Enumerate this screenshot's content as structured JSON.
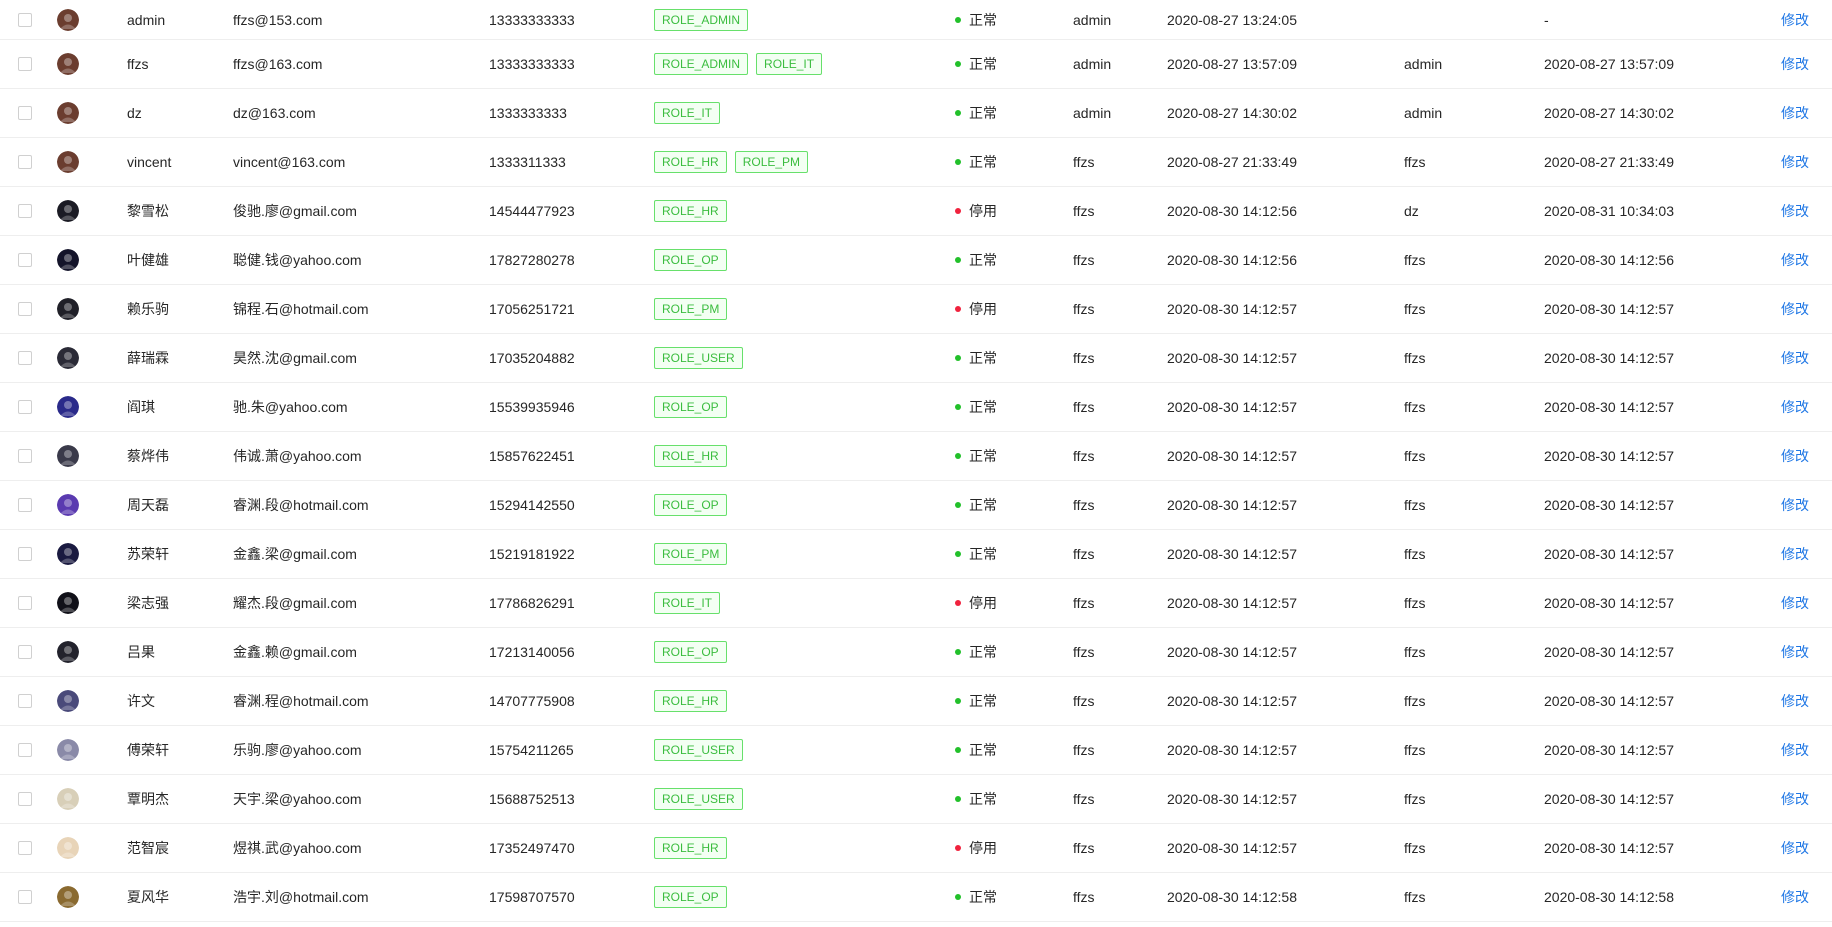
{
  "colors": {
    "status_normal": "#22c02a",
    "status_disabled": "#f0223d",
    "tag_border": "#67e06b",
    "tag_text": "#3bbd3f",
    "link": "#1f77e5"
  },
  "action_label": "修改",
  "rows": [
    {
      "username": "admin",
      "email": "ffzs@153.com",
      "phone": "13333333333",
      "roles": [
        "ROLE_ADMIN"
      ],
      "status": "正常",
      "status_key": "normal",
      "creator": "admin",
      "create_time": "2020-08-27 13:24:05",
      "updater": "",
      "update_time": "-",
      "avatar_icon": "user-avatar-icon",
      "avatar_color": "#6b3d2f"
    },
    {
      "username": "ffzs",
      "email": "ffzs@163.com",
      "phone": "13333333333",
      "roles": [
        "ROLE_ADMIN",
        "ROLE_IT"
      ],
      "status": "正常",
      "status_key": "normal",
      "creator": "admin",
      "create_time": "2020-08-27 13:57:09",
      "updater": "admin",
      "update_time": "2020-08-27 13:57:09",
      "avatar_icon": "user-avatar-icon",
      "avatar_color": "#6b3d2f"
    },
    {
      "username": "dz",
      "email": "dz@163.com",
      "phone": "1333333333",
      "roles": [
        "ROLE_IT"
      ],
      "status": "正常",
      "status_key": "normal",
      "creator": "admin",
      "create_time": "2020-08-27 14:30:02",
      "updater": "admin",
      "update_time": "2020-08-27 14:30:02",
      "avatar_icon": "user-avatar-icon",
      "avatar_color": "#6b3d2f"
    },
    {
      "username": "vincent",
      "email": "vincent@163.com",
      "phone": "1333311333",
      "roles": [
        "ROLE_HR",
        "ROLE_PM"
      ],
      "status": "正常",
      "status_key": "normal",
      "creator": "ffzs",
      "create_time": "2020-08-27 21:33:49",
      "updater": "ffzs",
      "update_time": "2020-08-27 21:33:49",
      "avatar_icon": "user-avatar-icon",
      "avatar_color": "#6b3d2f"
    },
    {
      "username": "黎雪松",
      "email": "俊驰.廖@gmail.com",
      "phone": "14544477923",
      "roles": [
        "ROLE_HR"
      ],
      "status": "停用",
      "status_key": "disabled",
      "creator": "ffzs",
      "create_time": "2020-08-30 14:12:56",
      "updater": "dz",
      "update_time": "2020-08-31 10:34:03",
      "avatar_icon": "user-avatar-icon",
      "avatar_color": "#1b1b24"
    },
    {
      "username": "叶健雄",
      "email": "聪健.钱@yahoo.com",
      "phone": "17827280278",
      "roles": [
        "ROLE_OP"
      ],
      "status": "正常",
      "status_key": "normal",
      "creator": "ffzs",
      "create_time": "2020-08-30 14:12:56",
      "updater": "ffzs",
      "update_time": "2020-08-30 14:12:56",
      "avatar_icon": "user-avatar-icon",
      "avatar_color": "#14142a"
    },
    {
      "username": "赖乐驹",
      "email": "锦程.石@hotmail.com",
      "phone": "17056251721",
      "roles": [
        "ROLE_PM"
      ],
      "status": "停用",
      "status_key": "disabled",
      "creator": "ffzs",
      "create_time": "2020-08-30 14:12:57",
      "updater": "ffzs",
      "update_time": "2020-08-30 14:12:57",
      "avatar_icon": "user-avatar-icon",
      "avatar_color": "#202028"
    },
    {
      "username": "薛瑞霖",
      "email": "昊然.沈@gmail.com",
      "phone": "17035204882",
      "roles": [
        "ROLE_USER"
      ],
      "status": "正常",
      "status_key": "normal",
      "creator": "ffzs",
      "create_time": "2020-08-30 14:12:57",
      "updater": "ffzs",
      "update_time": "2020-08-30 14:12:57",
      "avatar_icon": "user-avatar-icon",
      "avatar_color": "#2a2a36"
    },
    {
      "username": "阎琪",
      "email": "驰.朱@yahoo.com",
      "phone": "15539935946",
      "roles": [
        "ROLE_OP"
      ],
      "status": "正常",
      "status_key": "normal",
      "creator": "ffzs",
      "create_time": "2020-08-30 14:12:57",
      "updater": "ffzs",
      "update_time": "2020-08-30 14:12:57",
      "avatar_icon": "user-avatar-icon",
      "avatar_color": "#2a2a8a"
    },
    {
      "username": "蔡烨伟",
      "email": "伟诚.萧@yahoo.com",
      "phone": "15857622451",
      "roles": [
        "ROLE_HR"
      ],
      "status": "正常",
      "status_key": "normal",
      "creator": "ffzs",
      "create_time": "2020-08-30 14:12:57",
      "updater": "ffzs",
      "update_time": "2020-08-30 14:12:57",
      "avatar_icon": "user-avatar-icon",
      "avatar_color": "#3a3a4a"
    },
    {
      "username": "周天磊",
      "email": "睿渊.段@hotmail.com",
      "phone": "15294142550",
      "roles": [
        "ROLE_OP"
      ],
      "status": "正常",
      "status_key": "normal",
      "creator": "ffzs",
      "create_time": "2020-08-30 14:12:57",
      "updater": "ffzs",
      "update_time": "2020-08-30 14:12:57",
      "avatar_icon": "user-avatar-icon",
      "avatar_color": "#5a3ab0"
    },
    {
      "username": "苏荣轩",
      "email": "金鑫.梁@gmail.com",
      "phone": "15219181922",
      "roles": [
        "ROLE_PM"
      ],
      "status": "正常",
      "status_key": "normal",
      "creator": "ffzs",
      "create_time": "2020-08-30 14:12:57",
      "updater": "ffzs",
      "update_time": "2020-08-30 14:12:57",
      "avatar_icon": "user-avatar-icon",
      "avatar_color": "#1a1a40"
    },
    {
      "username": "梁志强",
      "email": "耀杰.段@gmail.com",
      "phone": "17786826291",
      "roles": [
        "ROLE_IT"
      ],
      "status": "停用",
      "status_key": "disabled",
      "creator": "ffzs",
      "create_time": "2020-08-30 14:12:57",
      "updater": "ffzs",
      "update_time": "2020-08-30 14:12:57",
      "avatar_icon": "user-avatar-icon",
      "avatar_color": "#101018"
    },
    {
      "username": "吕果",
      "email": "金鑫.赖@gmail.com",
      "phone": "17213140056",
      "roles": [
        "ROLE_OP"
      ],
      "status": "正常",
      "status_key": "normal",
      "creator": "ffzs",
      "create_time": "2020-08-30 14:12:57",
      "updater": "ffzs",
      "update_time": "2020-08-30 14:12:57",
      "avatar_icon": "user-avatar-icon",
      "avatar_color": "#22222c"
    },
    {
      "username": "许文",
      "email": "睿渊.程@hotmail.com",
      "phone": "14707775908",
      "roles": [
        "ROLE_HR"
      ],
      "status": "正常",
      "status_key": "normal",
      "creator": "ffzs",
      "create_time": "2020-08-30 14:12:57",
      "updater": "ffzs",
      "update_time": "2020-08-30 14:12:57",
      "avatar_icon": "user-avatar-icon",
      "avatar_color": "#4a4a7a"
    },
    {
      "username": "傅荣轩",
      "email": "乐驹.廖@yahoo.com",
      "phone": "15754211265",
      "roles": [
        "ROLE_USER"
      ],
      "status": "正常",
      "status_key": "normal",
      "creator": "ffzs",
      "create_time": "2020-08-30 14:12:57",
      "updater": "ffzs",
      "update_time": "2020-08-30 14:12:57",
      "avatar_icon": "user-avatar-icon",
      "avatar_color": "#8a8aa8"
    },
    {
      "username": "覃明杰",
      "email": "天宇.梁@yahoo.com",
      "phone": "15688752513",
      "roles": [
        "ROLE_USER"
      ],
      "status": "正常",
      "status_key": "normal",
      "creator": "ffzs",
      "create_time": "2020-08-30 14:12:57",
      "updater": "ffzs",
      "update_time": "2020-08-30 14:12:57",
      "avatar_icon": "user-avatar-icon",
      "avatar_color": "#d8cfb8"
    },
    {
      "username": "范智宸",
      "email": "煜祺.武@yahoo.com",
      "phone": "17352497470",
      "roles": [
        "ROLE_HR"
      ],
      "status": "停用",
      "status_key": "disabled",
      "creator": "ffzs",
      "create_time": "2020-08-30 14:12:57",
      "updater": "ffzs",
      "update_time": "2020-08-30 14:12:57",
      "avatar_icon": "user-avatar-icon",
      "avatar_color": "#e8d4b8"
    },
    {
      "username": "夏风华",
      "email": "浩宇.刘@hotmail.com",
      "phone": "17598707570",
      "roles": [
        "ROLE_OP"
      ],
      "status": "正常",
      "status_key": "normal",
      "creator": "ffzs",
      "create_time": "2020-08-30 14:12:58",
      "updater": "ffzs",
      "update_time": "2020-08-30 14:12:58",
      "avatar_icon": "user-avatar-icon",
      "avatar_color": "#8a6a30"
    }
  ]
}
